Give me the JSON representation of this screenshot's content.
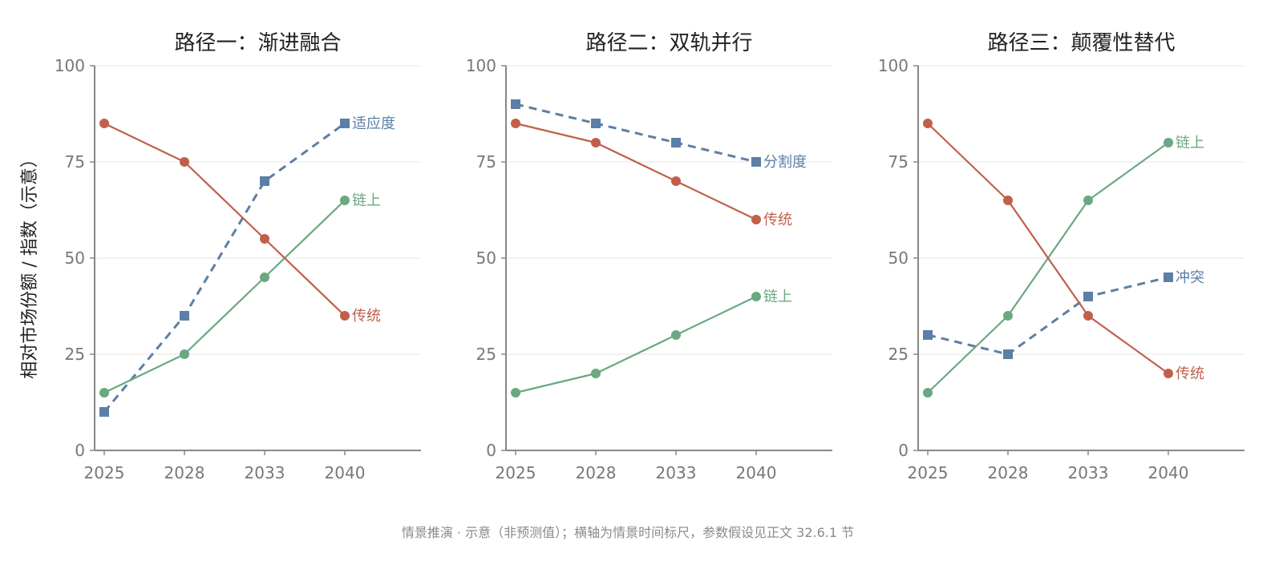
{
  "chart_data": {
    "type": "line",
    "ylabel": "相对市场份额 / 指数（示意）",
    "footnote": "情景推演 · 示意（非预测值）；横轴为情景时间标尺，参数假设见正文 32.6.1 节",
    "panels": [
      {
        "title": "路径一：渐进融合",
        "x": [
          "2025",
          "2028",
          "2033",
          "2040"
        ],
        "ylim": [
          0,
          100
        ],
        "yticks": [
          0,
          25,
          50,
          75,
          100
        ],
        "grid": true,
        "series": [
          {
            "name": "适应度",
            "values": [
              10,
              35,
              70,
              85
            ],
            "color": "#5b7fa6",
            "style": "dashed",
            "marker": "square"
          },
          {
            "name": "链上",
            "values": [
              15,
              25,
              45,
              65
            ],
            "color": "#6aa882",
            "style": "solid",
            "marker": "circle"
          },
          {
            "name": "传统",
            "values": [
              85,
              75,
              55,
              35
            ],
            "color": "#c0604b",
            "style": "solid",
            "marker": "circle"
          }
        ]
      },
      {
        "title": "路径二：双轨并行",
        "x": [
          "2025",
          "2028",
          "2033",
          "2040"
        ],
        "ylim": [
          0,
          100
        ],
        "yticks": [
          0,
          25,
          50,
          75,
          100
        ],
        "grid": true,
        "series": [
          {
            "name": "分割度",
            "values": [
              90,
              85,
              80,
              75
            ],
            "color": "#5b7fa6",
            "style": "dashed",
            "marker": "square"
          },
          {
            "name": "传统",
            "values": [
              85,
              80,
              70,
              60
            ],
            "color": "#c0604b",
            "style": "solid",
            "marker": "circle"
          },
          {
            "name": "链上",
            "values": [
              15,
              20,
              30,
              40
            ],
            "color": "#6aa882",
            "style": "solid",
            "marker": "circle"
          }
        ]
      },
      {
        "title": "路径三：颠覆性替代",
        "x": [
          "2025",
          "2028",
          "2033",
          "2040"
        ],
        "ylim": [
          0,
          100
        ],
        "yticks": [
          0,
          25,
          50,
          75,
          100
        ],
        "grid": true,
        "series": [
          {
            "name": "链上",
            "values": [
              15,
              35,
              65,
              80
            ],
            "color": "#6aa882",
            "style": "solid",
            "marker": "circle"
          },
          {
            "name": "冲突",
            "values": [
              30,
              25,
              40,
              45
            ],
            "color": "#5b7fa6",
            "style": "dashed",
            "marker": "square"
          },
          {
            "name": "传统",
            "values": [
              85,
              65,
              35,
              20
            ],
            "color": "#c0604b",
            "style": "solid",
            "marker": "circle"
          }
        ]
      }
    ]
  }
}
